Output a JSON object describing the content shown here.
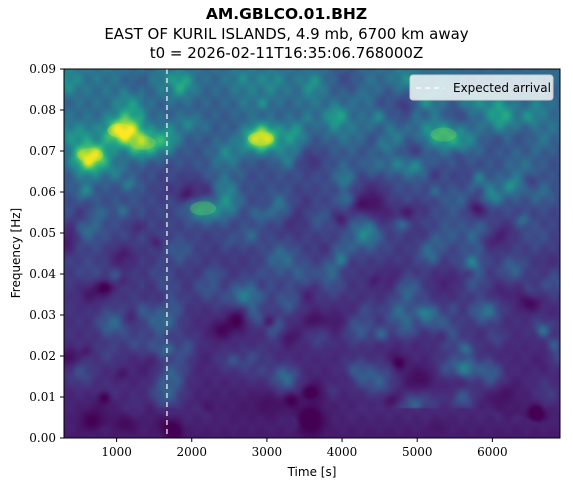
{
  "chart_data": {
    "type": "heatmap",
    "title": "AM.GBLCO.01.BHZ",
    "subtitle": "EAST OF KURIL ISLANDS, 4.9 mb, 6700 km away",
    "subtitle2": "t0 = 2026-02-11T16:35:06.768000Z",
    "xlabel": "Time [s]",
    "ylabel": "Frequency [Hz]",
    "xlim": [
      300,
      6900
    ],
    "ylim": [
      0,
      0.09
    ],
    "xticks": [
      1000,
      2000,
      3000,
      4000,
      5000,
      6000
    ],
    "yticks": [
      0.0,
      0.01,
      0.02,
      0.03,
      0.04,
      0.05,
      0.06,
      0.07,
      0.08,
      0.09
    ],
    "ytick_labels": [
      "0.00",
      "0.01",
      "0.02",
      "0.03",
      "0.04",
      "0.05",
      "0.06",
      "0.07",
      "0.08",
      "0.09"
    ],
    "colormap": "viridis",
    "expected_arrival": {
      "time": 1670,
      "label": "Expected arrival",
      "style": "dashed",
      "color": "#ffffff"
    },
    "legend_position": "top-right",
    "hotspots": [
      {
        "time": 1050,
        "freq": 0.075,
        "intensity": 1.0
      },
      {
        "time": 650,
        "freq": 0.069,
        "intensity": 0.85
      },
      {
        "time": 1350,
        "freq": 0.072,
        "intensity": 0.7
      },
      {
        "time": 2920,
        "freq": 0.073,
        "intensity": 0.9
      },
      {
        "time": 5350,
        "freq": 0.074,
        "intensity": 0.55
      },
      {
        "time": 2150,
        "freq": 0.056,
        "intensity": 0.5
      }
    ]
  }
}
